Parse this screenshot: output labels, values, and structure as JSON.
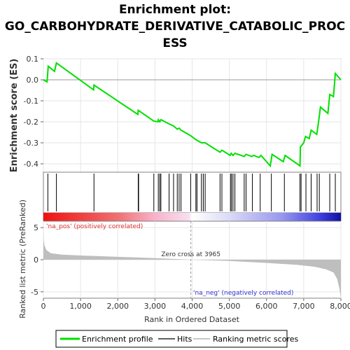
{
  "chart_data": {
    "type": "line",
    "title_lines": [
      "Enrichment plot:",
      "GO_CARBOHYDRATE_DERIVATIVE_CATABOLIC_PROC",
      "ESS"
    ],
    "top_panel": {
      "ylabel": "Enrichment score (ES)",
      "ylim": [
        -0.44,
        0.1
      ],
      "yticks": [
        0.1,
        0.0,
        -0.1,
        -0.2,
        -0.3,
        -0.4
      ],
      "ytick_labels": [
        "0.1",
        "0.0",
        "-0.1",
        "-0.2",
        "-0.3",
        "-0.4"
      ],
      "es_curve": [
        [
          0,
          0.0
        ],
        [
          100,
          -0.01
        ],
        [
          130,
          0.065
        ],
        [
          300,
          0.04
        ],
        [
          350,
          0.08
        ],
        [
          1350,
          -0.048
        ],
        [
          1360,
          -0.025
        ],
        [
          2540,
          -0.165
        ],
        [
          2550,
          -0.145
        ],
        [
          2970,
          -0.197
        ],
        [
          3080,
          -0.2
        ],
        [
          3090,
          -0.19
        ],
        [
          3130,
          -0.2
        ],
        [
          3160,
          -0.19
        ],
        [
          3380,
          -0.21
        ],
        [
          3500,
          -0.22
        ],
        [
          3600,
          -0.235
        ],
        [
          3650,
          -0.23
        ],
        [
          3700,
          -0.24
        ],
        [
          3950,
          -0.265
        ],
        [
          4100,
          -0.285
        ],
        [
          4250,
          -0.3
        ],
        [
          4350,
          -0.3
        ],
        [
          4750,
          -0.345
        ],
        [
          4800,
          -0.335
        ],
        [
          5020,
          -0.36
        ],
        [
          5050,
          -0.35
        ],
        [
          5100,
          -0.36
        ],
        [
          5150,
          -0.35
        ],
        [
          5400,
          -0.365
        ],
        [
          5450,
          -0.355
        ],
        [
          5600,
          -0.365
        ],
        [
          5650,
          -0.36
        ],
        [
          5800,
          -0.37
        ],
        [
          5850,
          -0.36
        ],
        [
          6100,
          -0.41
        ],
        [
          6150,
          -0.355
        ],
        [
          6450,
          -0.39
        ],
        [
          6500,
          -0.36
        ],
        [
          6900,
          -0.41
        ],
        [
          6910,
          -0.32
        ],
        [
          7000,
          -0.3
        ],
        [
          7050,
          -0.27
        ],
        [
          7150,
          -0.28
        ],
        [
          7200,
          -0.24
        ],
        [
          7350,
          -0.26
        ],
        [
          7400,
          -0.2
        ],
        [
          7450,
          -0.13
        ],
        [
          7650,
          -0.16
        ],
        [
          7700,
          -0.07
        ],
        [
          7800,
          -0.08
        ],
        [
          7850,
          0.03
        ],
        [
          8000,
          0.0
        ]
      ]
    },
    "hits": [
      120,
      350,
      1360,
      2550,
      2560,
      2970,
      3090,
      3130,
      3160,
      3380,
      3500,
      3600,
      3650,
      3700,
      3960,
      4100,
      4130,
      4250,
      4300,
      4350,
      4750,
      4800,
      5030,
      5060,
      5100,
      5150,
      5400,
      5450,
      5620,
      5830,
      6130,
      6480,
      6900,
      6930,
      7060,
      7200,
      7360,
      7420,
      7700,
      7850
    ],
    "bottom_panel": {
      "ylabel": "Ranked list metric (PreRanked)",
      "xlabel": "Rank in Ordered Dataset",
      "xlim": [
        0,
        8000
      ],
      "xticks": [
        0,
        1000,
        2000,
        3000,
        4000,
        5000,
        6000,
        7000,
        8000
      ],
      "xtick_labels": [
        "0",
        "1,000",
        "2,000",
        "3,000",
        "4,000",
        "5,000",
        "6,000",
        "7,000",
        "8,000"
      ],
      "ylim": [
        -6,
        6
      ],
      "yticks": [
        5,
        0,
        -5
      ],
      "ytick_labels": [
        "5",
        "0",
        "-5"
      ],
      "metric_curve": [
        [
          0,
          5.0
        ],
        [
          10,
          3.0
        ],
        [
          30,
          2.2
        ],
        [
          80,
          1.5
        ],
        [
          200,
          1.0
        ],
        [
          500,
          0.8
        ],
        [
          1000,
          0.65
        ],
        [
          2000,
          0.45
        ],
        [
          3000,
          0.25
        ],
        [
          3965,
          0.0
        ],
        [
          5000,
          -0.2
        ],
        [
          6000,
          -0.5
        ],
        [
          6800,
          -0.8
        ],
        [
          7300,
          -1.1
        ],
        [
          7600,
          -1.5
        ],
        [
          7800,
          -2.0
        ],
        [
          7900,
          -3.0
        ],
        [
          7960,
          -4.5
        ],
        [
          8000,
          -6.0
        ]
      ],
      "zero_cross_label": "Zero cross at 3965",
      "zero_cross": 3965,
      "pos_label": "'na_pos' (positively correlated)",
      "neg_label": "'na_neg' (negatively correlated)"
    },
    "legend": [
      {
        "label": "Enrichment profile",
        "color": "#00e000"
      },
      {
        "label": "Hits",
        "color": "#606060"
      },
      {
        "label": "Ranking metric scores",
        "color": "#c8c8c8"
      }
    ],
    "colors": {
      "es_line": "#00e000",
      "hit": "#000000",
      "metric_fill": "#bebebe",
      "pos_label": "#e03030",
      "neg_label": "#3030d0"
    }
  }
}
